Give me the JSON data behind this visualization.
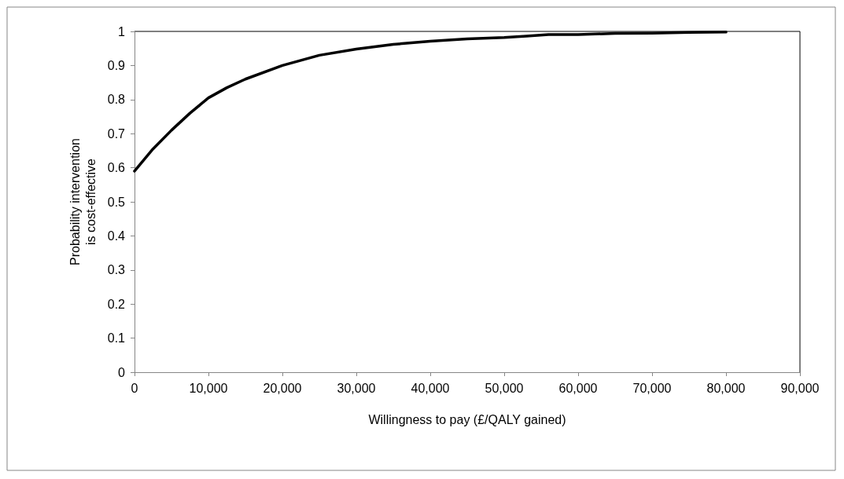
{
  "chart_data": {
    "type": "line",
    "xlabel": "Willingness to pay (£/QALY gained)",
    "ylabel": "Probability intervention\nis cost-effective",
    "x": [
      0,
      2500,
      5000,
      7500,
      10000,
      12500,
      15000,
      20000,
      25000,
      30000,
      35000,
      40000,
      45000,
      50000,
      53000,
      56000,
      60000,
      65000,
      70000,
      75000,
      80000
    ],
    "series": [
      {
        "color": "#000000",
        "values": [
          0.59,
          0.655,
          0.71,
          0.76,
          0.805,
          0.835,
          0.86,
          0.9,
          0.93,
          0.948,
          0.962,
          0.971,
          0.978,
          0.982,
          0.986,
          0.991,
          0.991,
          0.994,
          0.995,
          0.997,
          0.998
        ]
      }
    ],
    "xlim": [
      0,
      90000
    ],
    "xticks": [
      0,
      {
        "value": 10000,
        "label": "10,000"
      },
      {
        "value": 20000,
        "label": "20,000"
      },
      {
        "value": 30000,
        "label": "30,000"
      },
      {
        "value": 40000,
        "label": "40,000"
      },
      {
        "value": 50000,
        "label": "50,000"
      },
      {
        "value": 60000,
        "label": "60,000"
      },
      {
        "value": 70000,
        "label": "70,000"
      },
      {
        "value": 80000,
        "label": "80,000"
      },
      {
        "value": 90000,
        "label": "90,000"
      }
    ],
    "ylim": [
      0,
      1
    ],
    "yticks": [
      0,
      0.1,
      0.2,
      0.3,
      0.4,
      0.5,
      0.6,
      0.7,
      0.8,
      0.9,
      1
    ],
    "grid": false,
    "marker": "none",
    "line_style": "solid"
  }
}
